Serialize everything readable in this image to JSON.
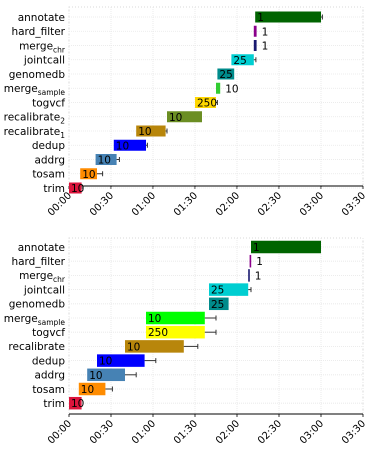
{
  "chart_data": [
    {
      "type": "bar",
      "orientation": "horizontal",
      "value_unit": "minutes",
      "xlim": [
        "00:00",
        "03:30"
      ],
      "x_ticks": [
        "00:00",
        "00:30",
        "01:00",
        "01:30",
        "02:00",
        "02:30",
        "03:00",
        "03:30"
      ],
      "grid": true,
      "bars": [
        {
          "category": "annotate",
          "category_sub": "",
          "start": "02:13",
          "end": "03:00",
          "label": "1",
          "color": "#006400",
          "err_min": 1
        },
        {
          "category": "hard_filter",
          "category_sub": "",
          "start": "02:12",
          "end": "02:14",
          "label": "1",
          "color": "#8b008b",
          "err_min": 0
        },
        {
          "category": "merge",
          "category_sub": "chr",
          "start": "02:12",
          "end": "02:14",
          "label": "1",
          "color": "#191970",
          "err_min": 0
        },
        {
          "category": "jointcall",
          "category_sub": "",
          "start": "01:56",
          "end": "02:12",
          "label": "25",
          "color": "#00ced1",
          "err_min": 1.5
        },
        {
          "category": "genomedb",
          "category_sub": "",
          "start": "01:46",
          "end": "01:58",
          "label": "25",
          "color": "#008b8b",
          "err_min": 0
        },
        {
          "category": "merge",
          "category_sub": "sample",
          "start": "01:45",
          "end": "01:48",
          "label": "10",
          "color": "#32cd32",
          "err_min": 0
        },
        {
          "category": "togvcf",
          "category_sub": "",
          "start": "01:30",
          "end": "01:45",
          "label": "250",
          "color": "#ffd700",
          "err_min": 1
        },
        {
          "category": "recalibrate",
          "category_sub": "2",
          "start": "01:10",
          "end": "01:35",
          "label": "10",
          "color": "#6b8e23",
          "err_min": 0
        },
        {
          "category": "recalibrate",
          "category_sub": "1",
          "start": "00:48",
          "end": "01:09",
          "label": "10",
          "color": "#b8860b",
          "err_min": 1
        },
        {
          "category": "dedup",
          "category_sub": "",
          "start": "00:32",
          "end": "00:55",
          "label": "10",
          "color": "#0000ff",
          "err_min": 1
        },
        {
          "category": "addrg",
          "category_sub": "",
          "start": "00:19",
          "end": "00:34",
          "label": "10",
          "color": "#4682b4",
          "err_min": 2
        },
        {
          "category": "tosam",
          "category_sub": "",
          "start": "00:08",
          "end": "00:20",
          "label": "10",
          "color": "#ff8c00",
          "err_min": 4
        },
        {
          "category": "trim",
          "category_sub": "",
          "start": "00:00",
          "end": "00:09",
          "label": "10",
          "color": "#dc143c",
          "err_min": 1
        }
      ]
    },
    {
      "type": "bar",
      "orientation": "horizontal",
      "value_unit": "minutes",
      "xlim": [
        "00:00",
        "03:30"
      ],
      "x_ticks": [
        "00:00",
        "00:30",
        "01:00",
        "01:30",
        "02:00",
        "02:30",
        "03:00",
        "03:30"
      ],
      "grid": true,
      "bars": [
        {
          "category": "annotate",
          "category_sub": "",
          "start": "02:10",
          "end": "03:00",
          "label": "1",
          "color": "#006400",
          "err_min": 0
        },
        {
          "category": "hard_filter",
          "category_sub": "",
          "start": "02:09",
          "end": "02:10",
          "label": "1",
          "color": "#8b008b",
          "err_min": 0
        },
        {
          "category": "merge",
          "category_sub": "chr",
          "start": "02:08",
          "end": "02:09",
          "label": "1",
          "color": "#191970",
          "err_min": 0
        },
        {
          "category": "jointcall",
          "category_sub": "",
          "start": "01:40",
          "end": "02:08",
          "label": "25",
          "color": "#00ced1",
          "err_min": 2
        },
        {
          "category": "genomedb",
          "category_sub": "",
          "start": "01:40",
          "end": "01:54",
          "label": "25",
          "color": "#008b8b",
          "err_min": 0
        },
        {
          "category": "merge",
          "category_sub": "sample",
          "start": "00:55",
          "end": "01:37",
          "label": "10",
          "color": "#00ff00",
          "err_min": 8
        },
        {
          "category": "togvcf",
          "category_sub": "",
          "start": "00:55",
          "end": "01:37",
          "label": "250",
          "color": "#ffff00",
          "err_min": 8
        },
        {
          "category": "recalibrate",
          "category_sub": "",
          "start": "00:40",
          "end": "01:22",
          "label": "10",
          "color": "#b8860b",
          "err_min": 10
        },
        {
          "category": "dedup",
          "category_sub": "",
          "start": "00:20",
          "end": "00:54",
          "label": "10",
          "color": "#0000ff",
          "err_min": 8
        },
        {
          "category": "addrg",
          "category_sub": "",
          "start": "00:13",
          "end": "00:40",
          "label": "10",
          "color": "#4682b4",
          "err_min": 8
        },
        {
          "category": "tosam",
          "category_sub": "",
          "start": "00:07",
          "end": "00:26",
          "label": "10",
          "color": "#ff8c00",
          "err_min": 5
        },
        {
          "category": "trim",
          "category_sub": "",
          "start": "00:00",
          "end": "00:09",
          "label": "10",
          "color": "#dc143c",
          "err_min": 0
        }
      ]
    }
  ]
}
